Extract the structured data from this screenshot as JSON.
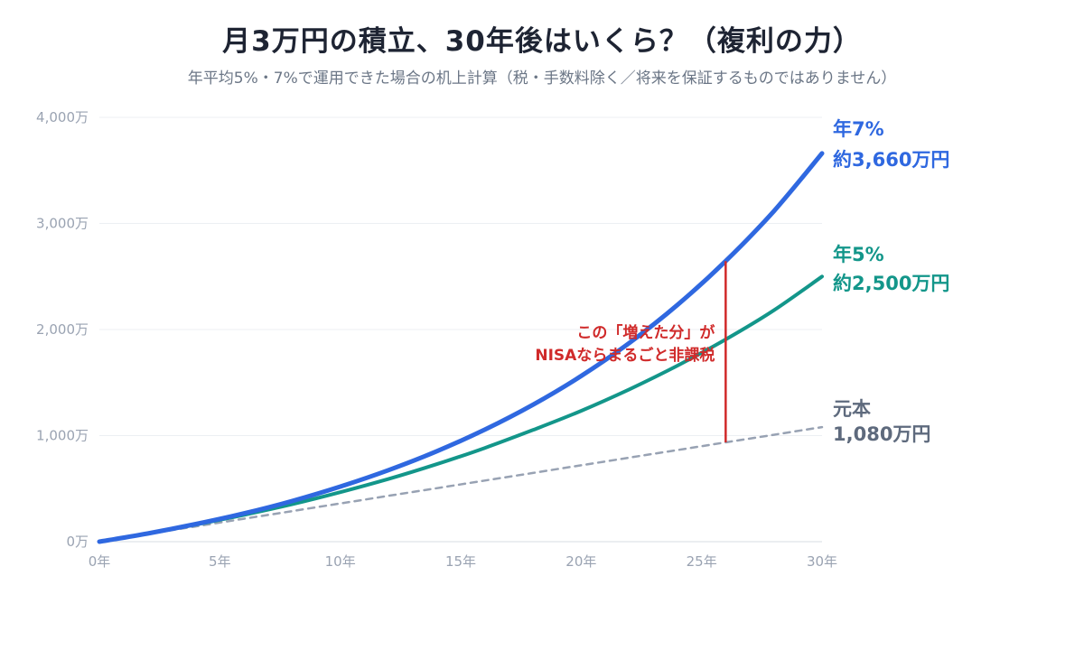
{
  "title": "月3万円の積立、30年後はいくら？（複利の力）",
  "subtitle": "年平均5%・7%で運用できた場合の机上計算（税・手数料除く／将来を保証するものではありません）",
  "chart_data": {
    "type": "line",
    "title": "月3万円の積立、30年後はいくら？（複利の力）",
    "subtitle": "年平均5%・7%で運用できた場合の机上計算（税・手数料除く／将来を保証するものではありません）",
    "xlabel": "",
    "ylabel": "",
    "xlim": [
      0,
      30
    ],
    "ylim": [
      0,
      4000
    ],
    "grid": true,
    "x_ticks": [
      {
        "value": 0,
        "label": "0年"
      },
      {
        "value": 5,
        "label": "5年"
      },
      {
        "value": 10,
        "label": "10年"
      },
      {
        "value": 15,
        "label": "15年"
      },
      {
        "value": 20,
        "label": "20年"
      },
      {
        "value": 25,
        "label": "25年"
      },
      {
        "value": 30,
        "label": "30年"
      }
    ],
    "y_ticks": [
      {
        "value": 0,
        "label": "0万"
      },
      {
        "value": 1000,
        "label": "1,000万"
      },
      {
        "value": 2000,
        "label": "2,000万"
      },
      {
        "value": 3000,
        "label": "3,000万"
      },
      {
        "value": 4000,
        "label": "4,000万"
      }
    ],
    "x": [
      0,
      2,
      4,
      6,
      8,
      10,
      12,
      14,
      16,
      18,
      20,
      22,
      24,
      26,
      28,
      30
    ],
    "series": [
      {
        "key": "r7",
        "color": "#2f68e0",
        "style": "solid",
        "values": [
          0,
          77,
          166,
          266,
          383,
          519,
          674,
          852,
          1056,
          1291,
          1562,
          1873,
          2232,
          2645,
          3116,
          3660
        ],
        "end_label": [
          "年7%",
          "約3,660万円"
        ]
      },
      {
        "key": "r5",
        "color": "#13968a",
        "style": "solid",
        "values": [
          0,
          76,
          160,
          252,
          352,
          466,
          591,
          730,
          883,
          1053,
          1233,
          1436,
          1660,
          1906,
          2181,
          2500
        ],
        "end_label": [
          "年5%",
          "約2,500万円"
        ]
      },
      {
        "key": "principal",
        "color": "#98a2b3",
        "style": "dashed",
        "values": [
          0,
          72,
          144,
          216,
          288,
          360,
          432,
          504,
          576,
          648,
          720,
          792,
          864,
          936,
          1008,
          1080
        ],
        "end_label": [
          "元本",
          "1,080万円"
        ]
      }
    ],
    "annotation": {
      "x": 26,
      "y_from": 936,
      "y_to": 2645,
      "color": "#d02a2a",
      "lines": [
        "この「増えた分」が",
        "NISAならまるごと非課税"
      ]
    }
  }
}
